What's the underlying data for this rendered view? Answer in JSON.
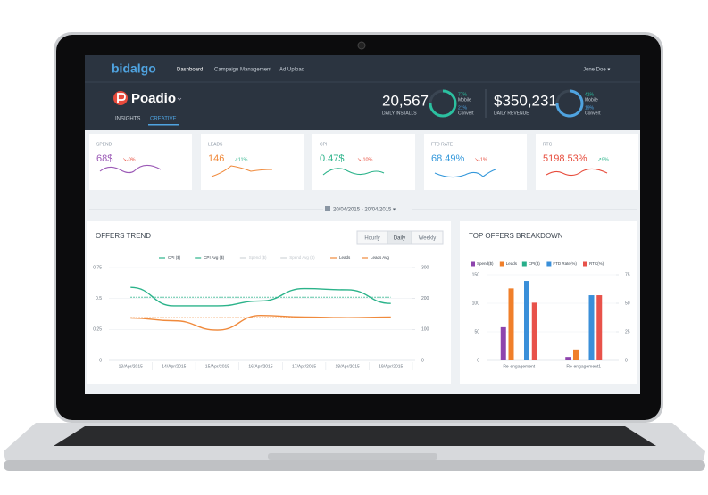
{
  "nav": {
    "logo": "bidalgo",
    "links": [
      "Dashboard",
      "Campaign Management",
      "Ad Upload"
    ],
    "user": "Jone Doe ▾"
  },
  "header": {
    "app": "Poadio",
    "tabs": [
      "INSIGHTS",
      "CREATIVE"
    ],
    "stats": [
      {
        "value": "20,567",
        "label": "DAILY INSTALLS",
        "split": [
          {
            "pct": "77%",
            "label": "Mobile"
          },
          {
            "pct": "21%",
            "label": "Convert"
          }
        ]
      },
      {
        "value": "$350,231",
        "label": "DAILY REVENUE",
        "split": [
          {
            "pct": "41%",
            "label": "Mobile"
          },
          {
            "pct": "19%",
            "label": "Convert"
          }
        ]
      }
    ]
  },
  "kpis": [
    {
      "label": "SPEND",
      "value": "68$",
      "change": "↘-0%",
      "color": "#9b59b6"
    },
    {
      "label": "LEADS",
      "value": "146",
      "change": "↗11%",
      "color": "#f08a3c"
    },
    {
      "label": "CPI",
      "value": "0.47$",
      "change": "↘-10%",
      "color": "#2bb38a"
    },
    {
      "label": "FTD RATE",
      "value": "68.49%",
      "change": "↘-1%",
      "color": "#3498db"
    },
    {
      "label": "RTC",
      "value": "5198.53%",
      "change": "↗9%",
      "color": "#e74c3c"
    }
  ],
  "date_range": "20/04/2015 - 20/04/2015 ▾",
  "chart_data": [
    {
      "type": "line",
      "title": "OFFERS TREND",
      "buttons": [
        "Hourly",
        "Daily",
        "Weekly"
      ],
      "categories": [
        "13/Apr/2015",
        "14/Apr/2015",
        "15/Apr/2015",
        "16/Apr/2015",
        "17/Apr/2015",
        "18/Apr/2015",
        "19/Apr/2015"
      ],
      "series": [
        {
          "name": "CPI ($)",
          "color": "#2bb38a",
          "values": [
            0.59,
            0.44,
            0.44,
            0.48,
            0.58,
            0.57,
            0.46
          ]
        },
        {
          "name": "CPI Avg ($)",
          "color": "#2bb38a",
          "dashed": true,
          "values": [
            0.51,
            0.51,
            0.51,
            0.51,
            0.51,
            0.51,
            0.51
          ]
        },
        {
          "name": "Spend ($)",
          "color": "#cccccc",
          "hidden": true
        },
        {
          "name": "Spend Avg ($)",
          "color": "#cccccc",
          "hidden": true
        },
        {
          "name": "Leads",
          "color": "#f08a3c",
          "axis": "y2",
          "values": [
            137,
            128,
            98,
            145,
            140,
            138,
            140
          ]
        },
        {
          "name": "Leads Avg",
          "color": "#f08a3c",
          "axis": "y2",
          "dashed": true,
          "values": [
            138,
            138,
            138,
            138,
            138,
            138,
            138
          ]
        }
      ],
      "ylim": [
        0,
        0.75
      ],
      "yticks": [
        0,
        0.25,
        0.5,
        0.75
      ],
      "y2lim": [
        0,
        300
      ],
      "y2ticks": [
        0,
        100,
        200,
        300
      ],
      "grid": true
    },
    {
      "type": "bar",
      "title": "TOP OFFERS BREAKDOWN",
      "categories": [
        "Re-engagement",
        "Re-engagement1"
      ],
      "series": [
        {
          "name": "Spend($)",
          "color": "#8e44ad",
          "values": [
            58,
            6
          ]
        },
        {
          "name": "Leads",
          "color": "#f07f2a",
          "values": [
            126,
            19
          ]
        },
        {
          "name": "CPI($)",
          "color": "#27ae8a",
          "values": [
            0,
            0
          ]
        },
        {
          "name": "FTD Rate(%)",
          "color": "#3a8fd9",
          "values": [
            139,
            114
          ]
        },
        {
          "name": "RTC(%)",
          "color": "#e8524a",
          "values": [
            101,
            114
          ]
        }
      ],
      "ylim": [
        0,
        150
      ],
      "yticks": [
        0,
        50,
        100,
        150
      ],
      "y2lim": [
        0,
        75
      ],
      "y2ticks": [
        0,
        25,
        50,
        75
      ],
      "grid": true
    }
  ]
}
